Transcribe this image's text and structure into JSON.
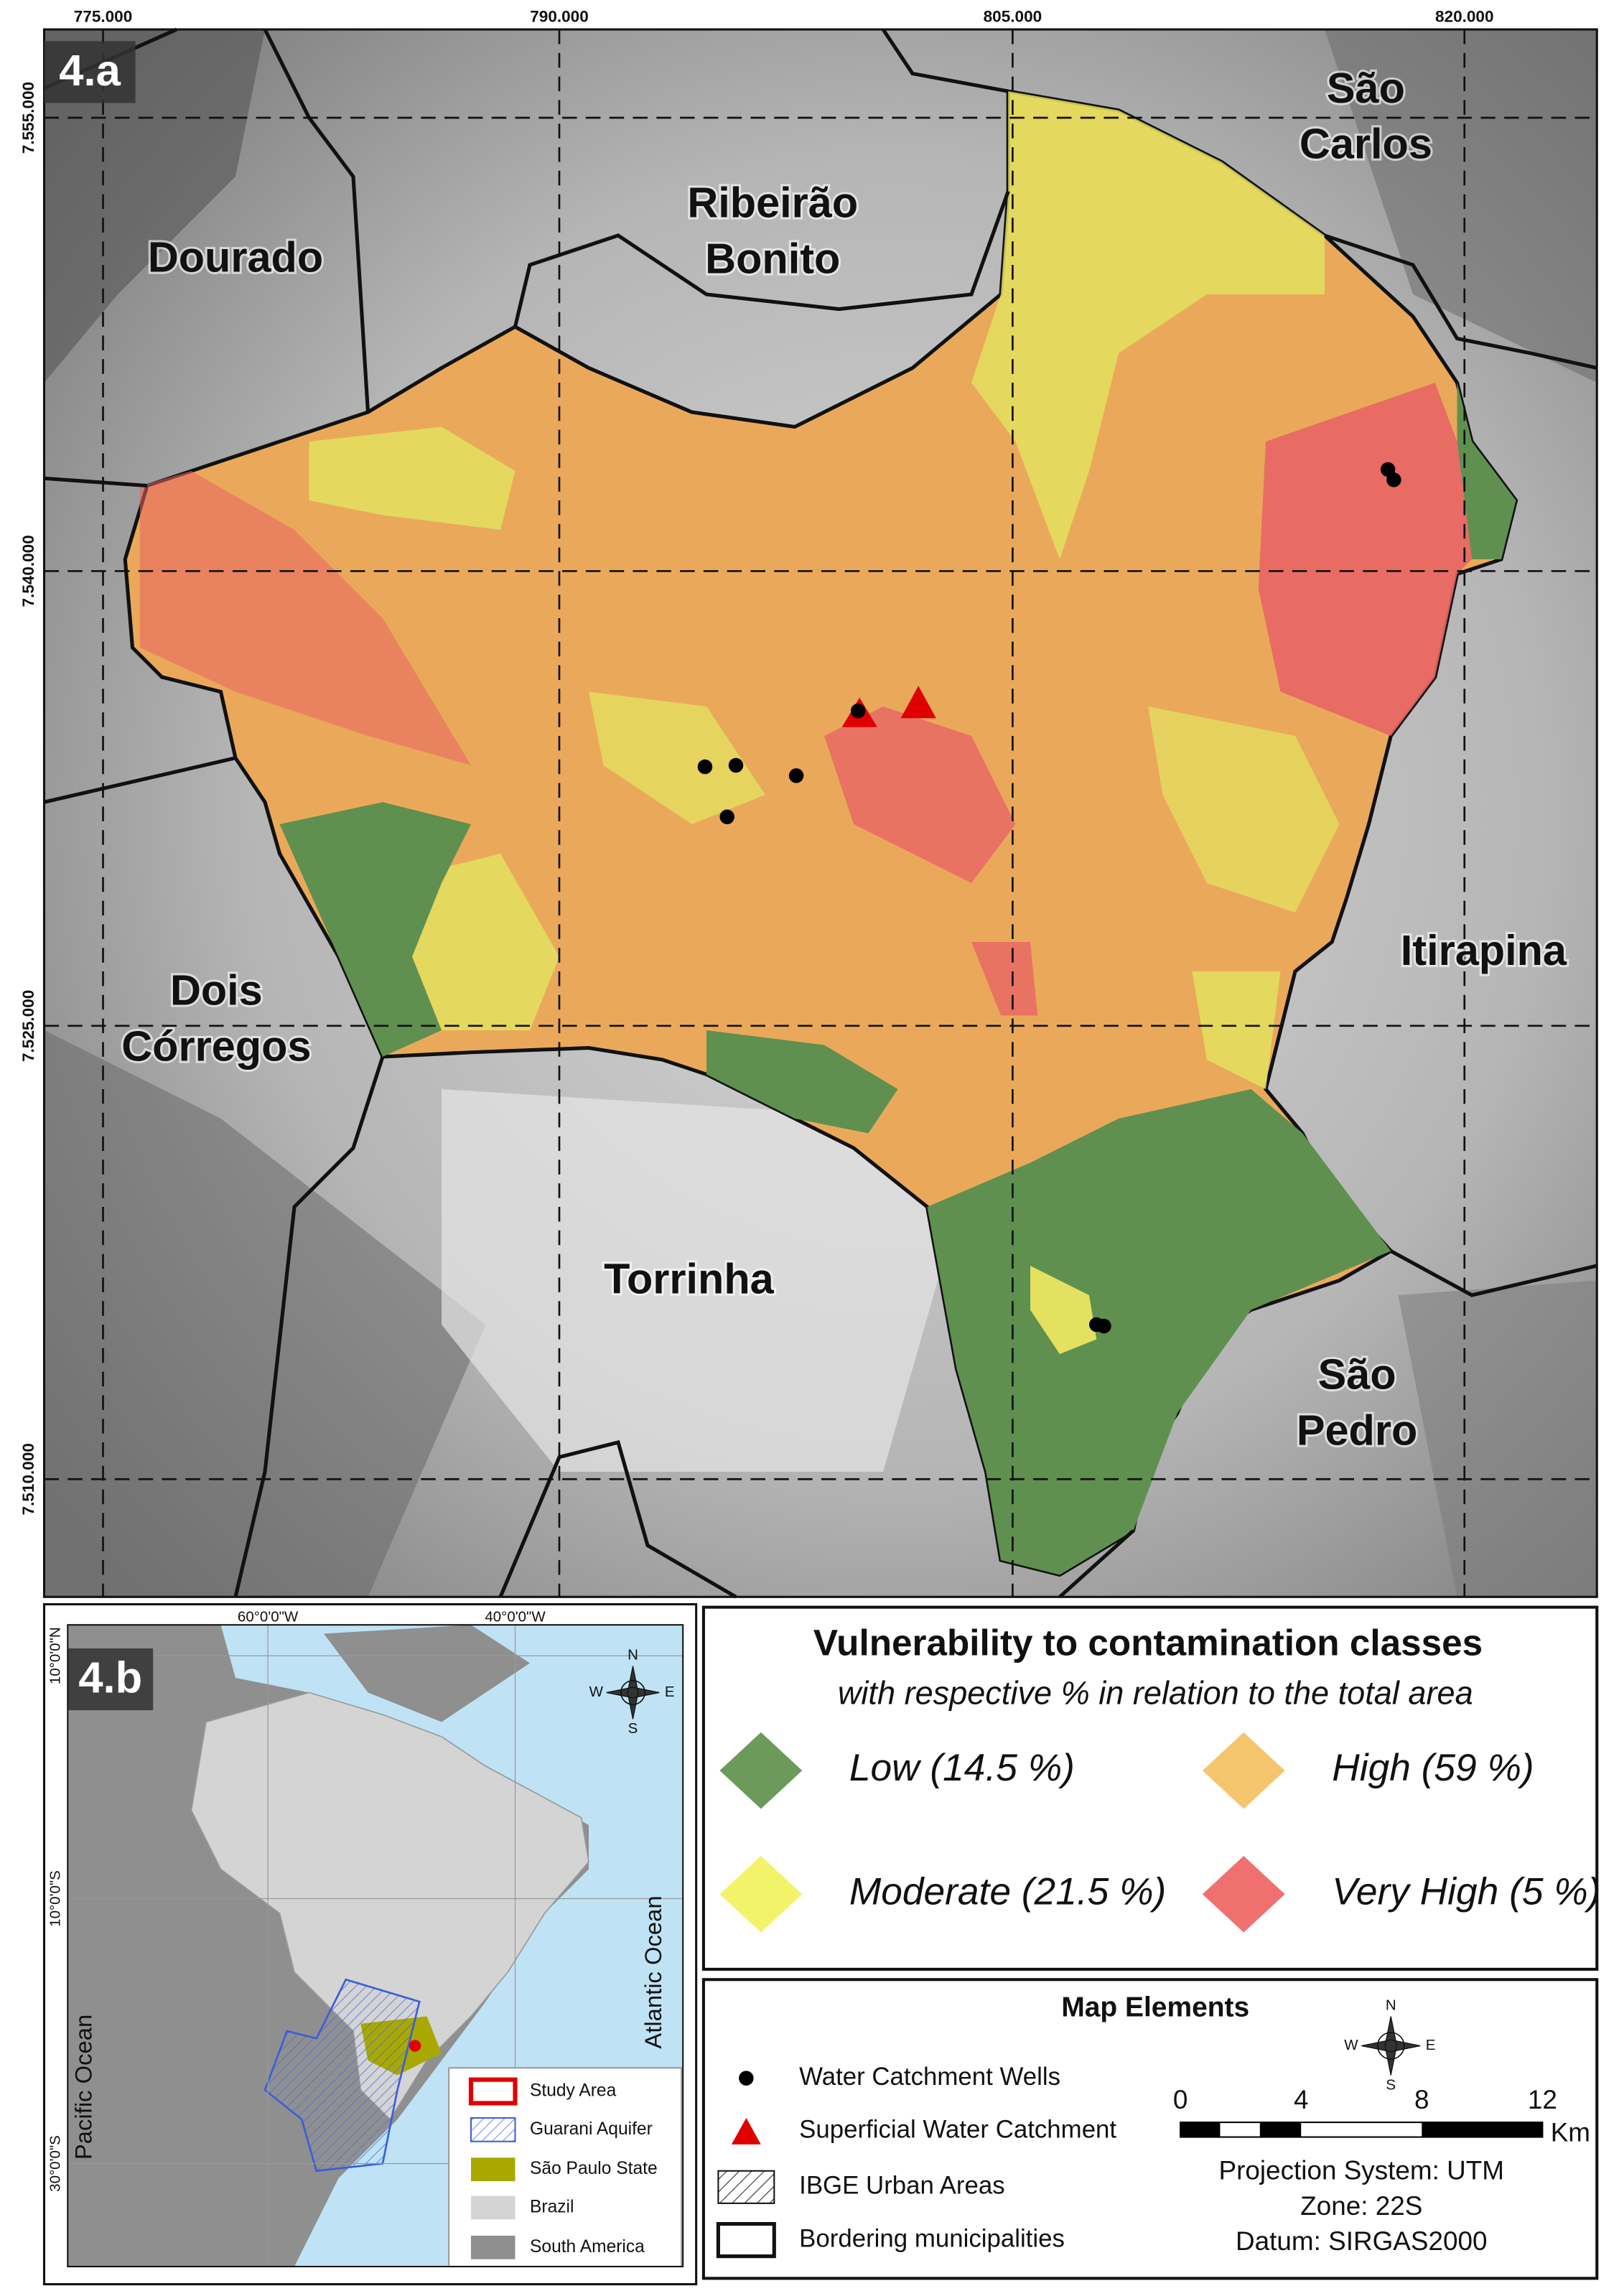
{
  "map_a": {
    "panel_label": "4.a",
    "x_labels": [
      "775.000",
      "790.000",
      "805.000",
      "820.000"
    ],
    "y_labels": [
      "7.555.000",
      "7.540.000",
      "7.525.000",
      "7.510.000"
    ],
    "municipalities": [
      {
        "lines": [
          "São",
          "Carlos"
        ]
      },
      {
        "lines": [
          "Ribeirão",
          "Bonito"
        ]
      },
      {
        "lines": [
          "Dourado"
        ]
      },
      {
        "lines": [
          "Dois",
          "Córregos"
        ]
      },
      {
        "lines": [
          "Itirapina"
        ]
      },
      {
        "lines": [
          "Torrinha"
        ]
      },
      {
        "lines": [
          "São",
          "Pedro"
        ]
      }
    ]
  },
  "inset_map": {
    "panel_label": "4.b",
    "x_labels": [
      "60°0'0\"W",
      "40°0'0\"W"
    ],
    "y_labels": [
      "10°0'0\"N",
      "10°0'0\"S",
      "30°0'0\"S"
    ],
    "oceans": [
      "Pacific Ocean",
      "Atlantic Ocean"
    ],
    "compass": [
      "N",
      "E",
      "S",
      "W"
    ],
    "legend": [
      "Study Area",
      "Guarani Aquifer",
      "São Paulo State",
      "Brazil",
      "South America"
    ]
  },
  "class_legend": {
    "title": "Vulnerability to contamination classes",
    "subtitle": "with respective % in relation to the total area",
    "classes": [
      "Low (14.5 %)",
      "High (59 %)",
      "Moderate (21.5 %)",
      "Very High (5 %)"
    ]
  },
  "map_elements": {
    "title": "Map Elements",
    "items": [
      "Water Catchment Wells",
      "Superficial Water Catchment",
      "IBGE Urban Areas",
      "Bordering municipalities"
    ],
    "compass": [
      "N",
      "E",
      "S",
      "W"
    ],
    "scale_labels": [
      "0",
      "4",
      "8",
      "12"
    ],
    "scale_unit": "Km",
    "projection": [
      "Projection System: UTM",
      "Zone: 22S",
      "Datum: SIRGAS2000"
    ]
  }
}
